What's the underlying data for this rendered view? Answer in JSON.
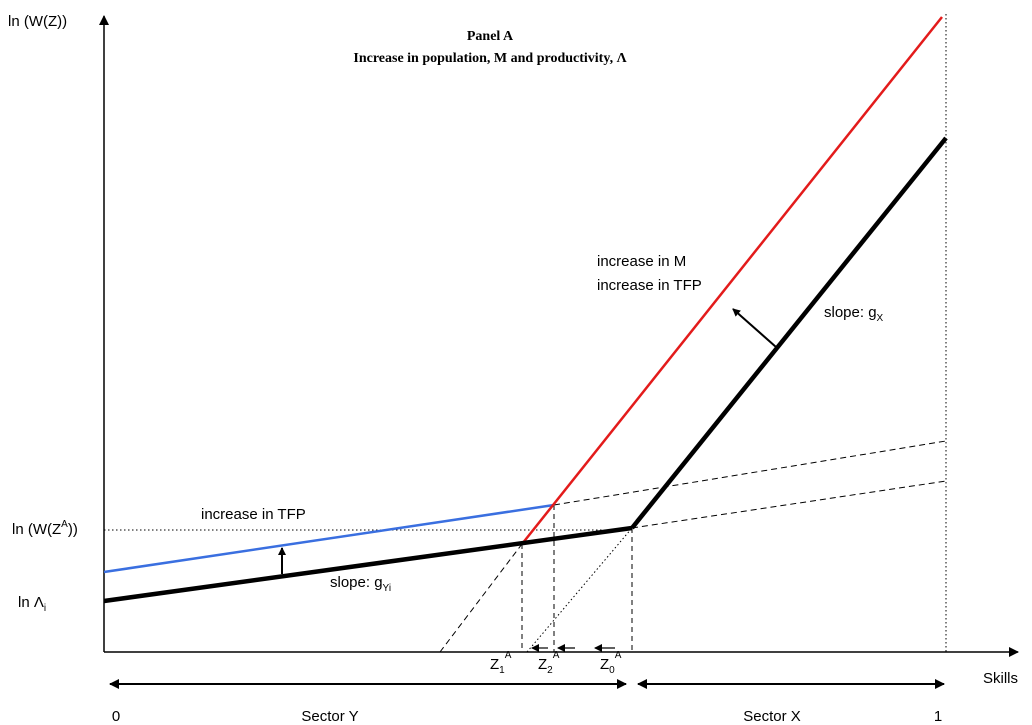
{
  "panel": {
    "title": "Panel A",
    "subtitle": "Increase in population, M and productivity, Λ"
  },
  "axes": {
    "y_label": "ln (W(Z))",
    "x_label": "Skills",
    "x_tick_0": "0",
    "x_tick_1": "1"
  },
  "y_levels": {
    "threshold_main": "ln (W(Z",
    "threshold_sup": "A",
    "threshold_close": "))",
    "lambda_main": "ln Λ",
    "lambda_sub": "i"
  },
  "annotations": {
    "tfp_low": "increase in TFP",
    "m_line": "increase in M",
    "tfp_high": "increase in TFP",
    "slope_x_main": "slope: g",
    "slope_x_sub": "X",
    "slope_y_main": "slope: g",
    "slope_y_sub": "Yi"
  },
  "thresholds": {
    "z1_main": "Z",
    "z1_sub": "1",
    "z1_sup": "A",
    "z2_main": "Z",
    "z2_sub": "2",
    "z2_sup": "A",
    "z0_main": "Z",
    "z0_sub": "0",
    "z0_sup": "A"
  },
  "sectors": {
    "y_label": "Sector Y",
    "x_label": "Sector X"
  },
  "colors": {
    "red_line": "#e31b1b",
    "blue_line": "#3a6fe0",
    "black_line": "#000000"
  }
}
